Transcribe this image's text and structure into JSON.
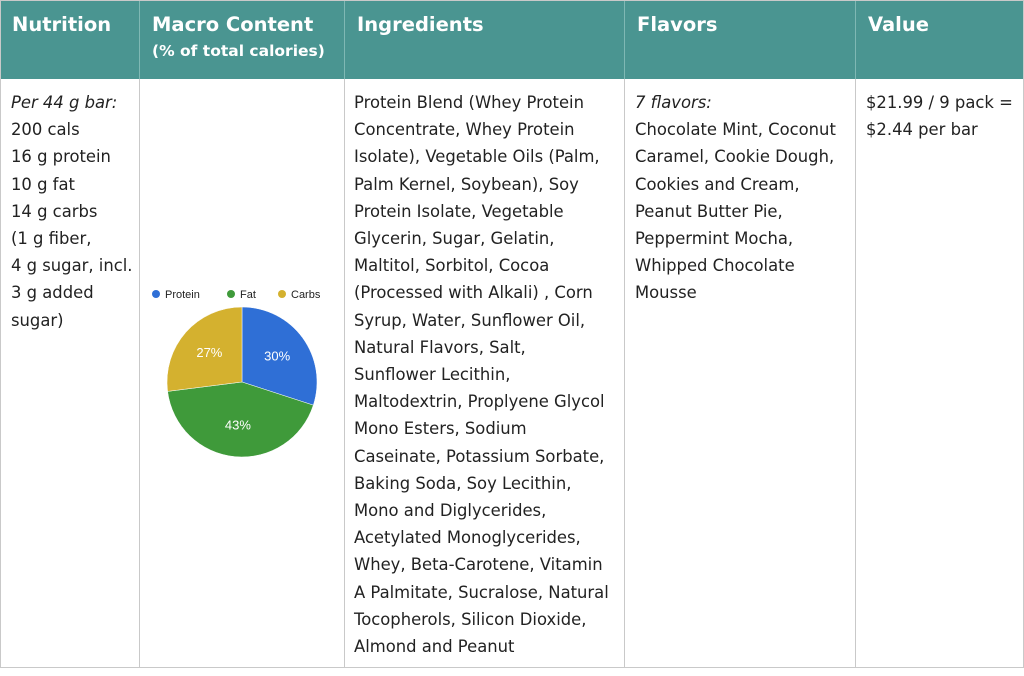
{
  "headers": {
    "nutrition": "Nutrition",
    "macro_title": "Macro Content",
    "macro_sub": "(% of total calories)",
    "ingredients": "Ingredients",
    "flavors": "Flavors",
    "value": "Value"
  },
  "nutrition": {
    "serving": "Per 44 g bar:",
    "lines": [
      "200 cals",
      "16 g protein",
      "10 g fat",
      "14 g carbs",
      "(1 g fiber,",
      "4 g sugar, incl.",
      "3 g added",
      "sugar)"
    ]
  },
  "ingredients": {
    "lines": [
      "Protein Blend (Whey Protein",
      "Concentrate, Whey Protein",
      "Isolate), Vegetable Oils (Palm,",
      "Palm Kernel, Soybean), Soy",
      "Protein Isolate, Vegetable",
      "Glycerin, Sugar, Gelatin,",
      "Maltitol, Sorbitol, Cocoa",
      "(Processed with Alkali) , Corn",
      "Syrup, Water, Sunflower Oil,",
      "Natural Flavors, Salt,",
      "Sunflower Lecithin,",
      "Maltodextrin, Proplyene Glycol",
      "Mono Esters, Sodium",
      "Caseinate, Potassium Sorbate,",
      "Baking Soda, Soy Lecithin,",
      "Mono and Diglycerides,",
      "Acetylated Monoglycerides,",
      "Whey, Beta-Carotene, Vitamin",
      "A Palmitate, Sucralose, Natural",
      "Tocopherols, Silicon Dioxide,",
      "Almond and Peanut"
    ]
  },
  "flavors": {
    "intro": "7 flavors:",
    "lines": [
      "Chocolate Mint, Coconut",
      "Caramel, Cookie Dough,",
      "Cookies and Cream,",
      "Peanut Butter Pie,",
      "Peppermint Mocha,",
      "Whipped Chocolate",
      "Mousse"
    ]
  },
  "value": {
    "lines": [
      "$21.99 / 9 pack =",
      "$2.44 per bar"
    ]
  },
  "colors": {
    "header_bg": "#4a9591",
    "protein": "#2f6fd6",
    "fat": "#3f9a3a",
    "carbs": "#d4b12f"
  },
  "chart_data": {
    "type": "pie",
    "title": "",
    "categories": [
      "Protein",
      "Fat",
      "Carbs"
    ],
    "values": [
      30,
      43,
      27
    ],
    "labels": [
      "30%",
      "43%",
      "27%"
    ],
    "colors": [
      "#2f6fd6",
      "#3f9a3a",
      "#d4b12f"
    ],
    "legend": "top"
  }
}
